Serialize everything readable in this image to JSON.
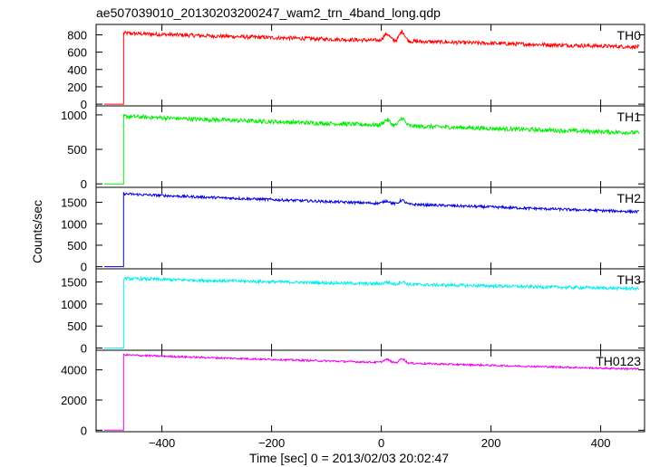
{
  "chart_data": {
    "type": "line",
    "title": "ae507039010_20130203200247_wam2_trn_4band_long.qdp",
    "xlabel": "Time [sec] 0 = 2013/02/03 20:02:47",
    "ylabel": "Counts/sec",
    "xlim": [
      -520,
      480
    ],
    "x_ticks": [
      -400,
      -200,
      0,
      200,
      400
    ],
    "x_tick_labels": [
      "−400",
      "−200",
      "0",
      "200",
      "400"
    ],
    "trigger_time": -470,
    "pre_trigger_start": -505,
    "end_time": 470,
    "panels": [
      {
        "name": "TH0",
        "color": "#ff0000",
        "ylim": [
          -20,
          920
        ],
        "y_ticks": [
          0,
          200,
          400,
          600,
          800
        ],
        "pre_level": 0,
        "start_level": 820,
        "end_level": 660,
        "noise": 22,
        "bump_height": 110
      },
      {
        "name": "TH1",
        "color": "#00ee00",
        "ylim": [
          -50,
          1130
        ],
        "y_ticks": [
          0,
          500,
          1000
        ],
        "pre_level": 0,
        "start_level": 980,
        "end_level": 740,
        "noise": 30,
        "bump_height": 110
      },
      {
        "name": "TH2",
        "color": "#0000dd",
        "ylim": [
          -50,
          1850
        ],
        "y_ticks": [
          0,
          500,
          1000,
          1500
        ],
        "pre_level": 0,
        "start_level": 1700,
        "end_level": 1280,
        "noise": 30,
        "bump_height": 90
      },
      {
        "name": "TH3",
        "color": "#00eeee",
        "ylim": [
          -50,
          1800
        ],
        "y_ticks": [
          0,
          500,
          1000,
          1500
        ],
        "pre_level": 0,
        "start_level": 1580,
        "end_level": 1350,
        "noise": 35,
        "bump_height": 60
      },
      {
        "name": "TH0123",
        "color": "#ee00ee",
        "ylim": [
          -100,
          5300
        ],
        "y_ticks": [
          0,
          2000,
          4000
        ],
        "pre_level": 0,
        "start_level": 5000,
        "end_level": 4050,
        "noise": 60,
        "bump_height": 300
      }
    ]
  }
}
